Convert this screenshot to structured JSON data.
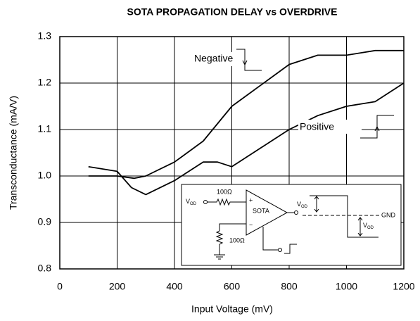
{
  "chart_data": {
    "type": "line",
    "title": "SOTA PROPAGATION DELAY vs OVERDRIVE",
    "x_label": "Input Voltage (mV)",
    "y_label": "Transconductance (mA/V)",
    "xlim": [
      0,
      1200
    ],
    "xticks": [
      0,
      200,
      400,
      600,
      800,
      1000,
      1200
    ],
    "ylim": [
      0.8,
      1.3
    ],
    "yticks": [
      0.8,
      0.9,
      {
        "value": 1,
        "label": "1.0"
      },
      1.1,
      1.2,
      1.3
    ],
    "grid": true,
    "series": [
      {
        "name": "Negative",
        "color": "#000000",
        "x": [
          100,
          200,
          260,
          300,
          400,
          500,
          600,
          700,
          800,
          900,
          1000,
          1100,
          1200
        ],
        "values": [
          1.0,
          1.0,
          0.995,
          1.0,
          1.03,
          1.075,
          1.15,
          1.195,
          1.24,
          1.26,
          1.26,
          1.27,
          1.27
        ]
      },
      {
        "name": "Positive",
        "color": "#000000",
        "x": [
          100,
          200,
          250,
          300,
          400,
          500,
          550,
          600,
          700,
          800,
          900,
          1000,
          1100,
          1200
        ],
        "values": [
          1.02,
          1.01,
          0.975,
          0.96,
          0.99,
          1.03,
          1.03,
          1.02,
          1.06,
          1.1,
          1.13,
          1.15,
          1.16,
          1.2
        ]
      }
    ],
    "inset": {
      "v": "V",
      "od": "OD",
      "r1": "100Ω",
      "r2": "100Ω",
      "amp": "SOTA",
      "plus": "+",
      "minus": "−",
      "gnd": "GND"
    }
  }
}
